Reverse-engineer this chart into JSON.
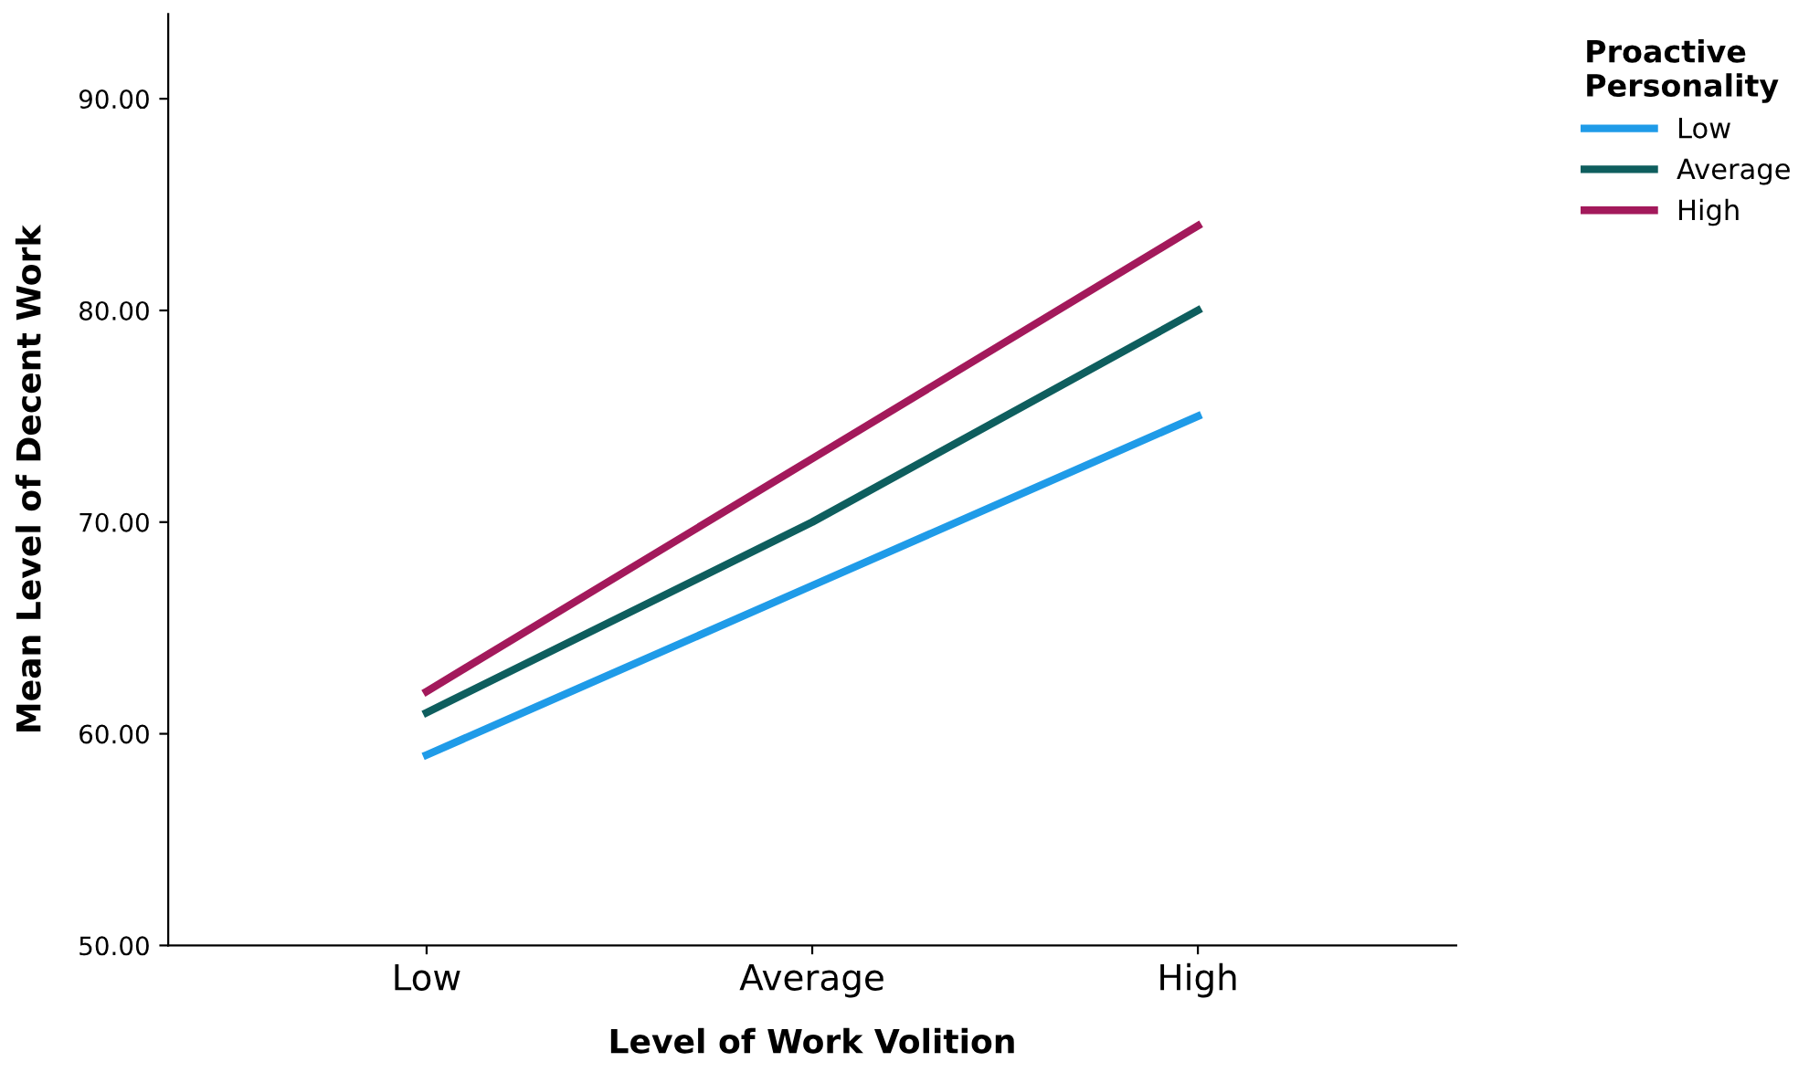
{
  "chart_data": {
    "type": "line",
    "xlabel": "Level of Work Volition",
    "ylabel": "Mean Level of Decent Work",
    "legend_title": "Proactive\nPersonality",
    "categories": [
      "Low",
      "Average",
      "High"
    ],
    "series": [
      {
        "name": "Low",
        "color": "#1f9be8",
        "values": [
          59,
          67,
          75
        ]
      },
      {
        "name": "Average",
        "color": "#0e5e5e",
        "values": [
          61,
          70,
          80
        ]
      },
      {
        "name": "High",
        "color": "#a3195b",
        "values": [
          62,
          73,
          84
        ]
      }
    ],
    "ylim": [
      50,
      94
    ],
    "yticks": [
      {
        "value": 50,
        "label": "50.00"
      },
      {
        "value": 60,
        "label": "60.00"
      },
      {
        "value": 70,
        "label": "70.00"
      },
      {
        "value": 80,
        "label": "80.00"
      },
      {
        "value": 90,
        "label": "90.00"
      }
    ],
    "grid": false,
    "legend": "top right",
    "marker": "none",
    "line_style": "solid"
  }
}
